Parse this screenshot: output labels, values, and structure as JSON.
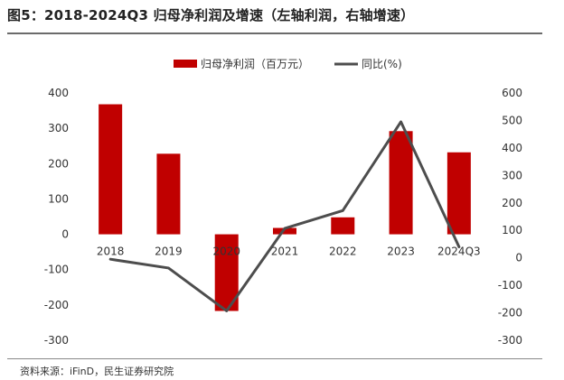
{
  "title": "图5：2018-2024Q3 归母净利润及增速（左轴利润，右轴增速）",
  "source": "资料来源：iFinD，民生证券研究院",
  "chart_data": {
    "type": "bar+line",
    "categories": [
      "2018",
      "2019",
      "2020",
      "2021",
      "2022",
      "2023",
      "2024Q3"
    ],
    "series": [
      {
        "name": "归母净利润（百万元）",
        "type": "bar",
        "axis": "left",
        "color": "#c00000",
        "values": [
          368,
          228,
          -217,
          18,
          48,
          292,
          232
        ]
      },
      {
        "name": "同比(%)",
        "type": "line",
        "axis": "right",
        "color": "#4d4d4d",
        "values": [
          -5,
          -37,
          -193,
          107,
          172,
          495,
          40
        ]
      }
    ],
    "left_axis": {
      "min": -300,
      "max": 400,
      "ticks": [
        400,
        300,
        200,
        100,
        0,
        -100,
        -200,
        -300
      ]
    },
    "right_axis": {
      "min": -300,
      "max": 600,
      "ticks": [
        600,
        500,
        400,
        300,
        200,
        100,
        0,
        -100,
        -200,
        -300
      ]
    },
    "legend_position": "top"
  }
}
